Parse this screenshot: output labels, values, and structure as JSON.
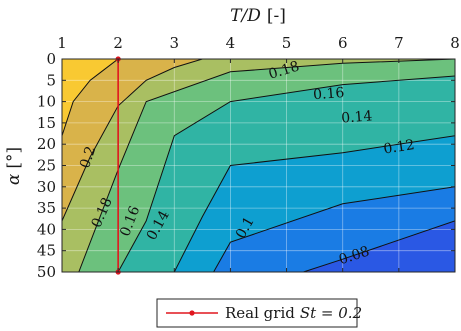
{
  "chart_data": {
    "type": "contour",
    "x_axis": {
      "label_var": "T/D",
      "label_unit": "[-]",
      "range": [
        1,
        8
      ],
      "ticks": [
        1,
        2,
        3,
        4,
        5,
        6,
        7,
        8
      ],
      "position": "top"
    },
    "y_axis": {
      "label_var": "α",
      "label_unit": "[°]",
      "range": [
        0,
        50
      ],
      "ticks": [
        0,
        5,
        10,
        15,
        20,
        25,
        30,
        35,
        40,
        45,
        50
      ],
      "reversed": true
    },
    "grid": true,
    "contour_levels": [
      0.08,
      0.1,
      0.12,
      0.14,
      0.16,
      0.18,
      0.2
    ],
    "contour_labels": [
      {
        "text": "0.2",
        "level": 0.2,
        "x": 1.45,
        "y": 23
      },
      {
        "text": "0.18",
        "level": 0.18,
        "x": 1.7,
        "y": 36
      },
      {
        "text": "0.16",
        "level": 0.16,
        "x": 2.2,
        "y": 38
      },
      {
        "text": "0.14",
        "level": 0.14,
        "x": 2.7,
        "y": 39
      },
      {
        "text": "0.18",
        "level": 0.18,
        "x": 4.95,
        "y": 2.5
      },
      {
        "text": "0.16",
        "level": 0.16,
        "x": 5.75,
        "y": 8
      },
      {
        "text": "0.14",
        "level": 0.14,
        "x": 6.25,
        "y": 13.5
      },
      {
        "text": "0.12",
        "level": 0.12,
        "x": 7.0,
        "y": 20.5
      },
      {
        "text": "0.1",
        "level": 0.1,
        "x": 4.25,
        "y": 39.5
      },
      {
        "text": "0.08",
        "level": 0.08,
        "x": 6.2,
        "y": 46
      }
    ],
    "contour_lines": [
      {
        "level": 0.2,
        "points": [
          [
            1.0,
            18
          ],
          [
            1.2,
            10
          ],
          [
            1.5,
            5
          ],
          [
            1.7,
            3
          ],
          [
            2.0,
            0
          ]
        ]
      },
      {
        "level": 0.18,
        "points": [
          [
            1.0,
            38
          ],
          [
            1.5,
            23
          ],
          [
            2.0,
            11
          ],
          [
            2.5,
            5
          ],
          [
            3.0,
            2
          ],
          [
            3.5,
            0
          ]
        ]
      },
      {
        "level": 0.16,
        "points": [
          [
            1.3,
            50
          ],
          [
            2.0,
            26
          ],
          [
            2.5,
            10
          ],
          [
            4.0,
            3
          ],
          [
            6.0,
            1
          ],
          [
            8.0,
            0
          ]
        ]
      },
      {
        "level": 0.14,
        "points": [
          [
            2.0,
            50
          ],
          [
            2.5,
            38
          ],
          [
            3.0,
            18
          ],
          [
            4.0,
            10
          ],
          [
            6.0,
            6
          ],
          [
            8.0,
            4
          ]
        ]
      },
      {
        "level": 0.12,
        "points": [
          [
            3.0,
            50
          ],
          [
            3.5,
            37
          ],
          [
            4.0,
            25
          ],
          [
            6.0,
            22
          ],
          [
            8.0,
            18
          ]
        ]
      },
      {
        "level": 0.1,
        "points": [
          [
            3.7,
            50
          ],
          [
            4.0,
            43
          ],
          [
            6.0,
            34
          ],
          [
            8.0,
            30
          ]
        ]
      },
      {
        "level": 0.08,
        "points": [
          [
            5.3,
            50
          ],
          [
            6.0,
            47
          ],
          [
            8.0,
            38
          ]
        ]
      }
    ],
    "reference_line": {
      "label": "Real grid",
      "label_math": "St = 0.2",
      "x": 2,
      "y_range": [
        0,
        50
      ],
      "color": "#e0161e"
    },
    "legend": {
      "placement": "bottom-center"
    },
    "colormap": "parula"
  }
}
